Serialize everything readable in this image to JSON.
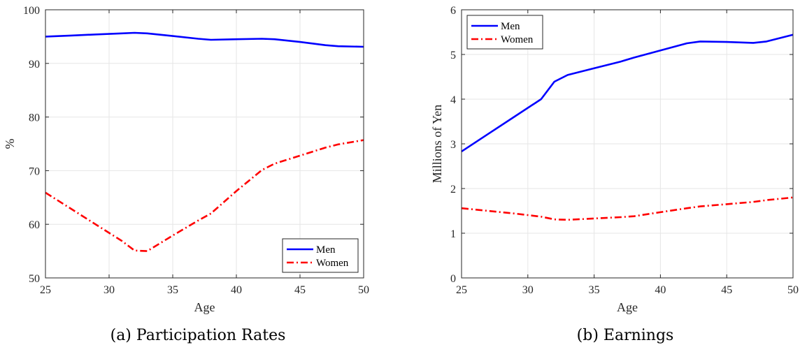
{
  "chart_data": [
    {
      "type": "line",
      "caption": "(a) Participation Rates",
      "xlabel": "Age",
      "ylabel": "%",
      "xlim": [
        25,
        50
      ],
      "ylim": [
        50,
        100
      ],
      "xticks": [
        25,
        30,
        35,
        40,
        45,
        50
      ],
      "yticks": [
        50,
        60,
        70,
        80,
        90,
        100
      ],
      "grid": true,
      "legend_position": "bottom-right",
      "series": [
        {
          "name": "Men",
          "color": "#0000ff",
          "style": "solid",
          "x": [
            25,
            27,
            29,
            31,
            32,
            33,
            35,
            37,
            38,
            40,
            42,
            43,
            45,
            47,
            48,
            50
          ],
          "y": [
            95.0,
            95.2,
            95.4,
            95.6,
            95.7,
            95.6,
            95.1,
            94.6,
            94.4,
            94.5,
            94.6,
            94.5,
            94.0,
            93.4,
            93.2,
            93.1
          ]
        },
        {
          "name": "Women",
          "color": "#ff0000",
          "style": "dashdot",
          "x": [
            25,
            27,
            29,
            31,
            32,
            33,
            35,
            37,
            38,
            40,
            42,
            43,
            45,
            47,
            48,
            50
          ],
          "y": [
            65.9,
            62.9,
            59.9,
            56.9,
            55.1,
            55.0,
            57.9,
            60.7,
            62.0,
            66.2,
            70.1,
            71.3,
            72.8,
            74.3,
            74.9,
            75.7
          ]
        }
      ]
    },
    {
      "type": "line",
      "caption": "(b) Earnings",
      "xlabel": "Age",
      "ylabel": "Millions of Yen",
      "xlim": [
        25,
        50
      ],
      "ylim": [
        0,
        6
      ],
      "xticks": [
        25,
        30,
        35,
        40,
        45,
        50
      ],
      "yticks": [
        0,
        1,
        2,
        3,
        4,
        5,
        6
      ],
      "grid": true,
      "legend_position": "top-left",
      "series": [
        {
          "name": "Men",
          "color": "#0000ff",
          "style": "solid",
          "x": [
            25,
            27,
            29,
            31,
            32,
            33,
            35,
            37,
            38,
            40,
            42,
            43,
            45,
            47,
            48,
            50
          ],
          "y": [
            2.83,
            3.22,
            3.61,
            4.0,
            4.39,
            4.54,
            4.69,
            4.84,
            4.93,
            5.09,
            5.25,
            5.29,
            5.28,
            5.26,
            5.29,
            5.44
          ]
        },
        {
          "name": "Women",
          "color": "#ff0000",
          "style": "dashdot",
          "x": [
            25,
            27,
            29,
            31,
            32,
            33,
            35,
            37,
            38,
            40,
            42,
            43,
            45,
            47,
            48,
            50
          ],
          "y": [
            1.56,
            1.5,
            1.44,
            1.37,
            1.31,
            1.3,
            1.33,
            1.36,
            1.38,
            1.47,
            1.56,
            1.6,
            1.65,
            1.7,
            1.74,
            1.8
          ]
        }
      ]
    }
  ]
}
